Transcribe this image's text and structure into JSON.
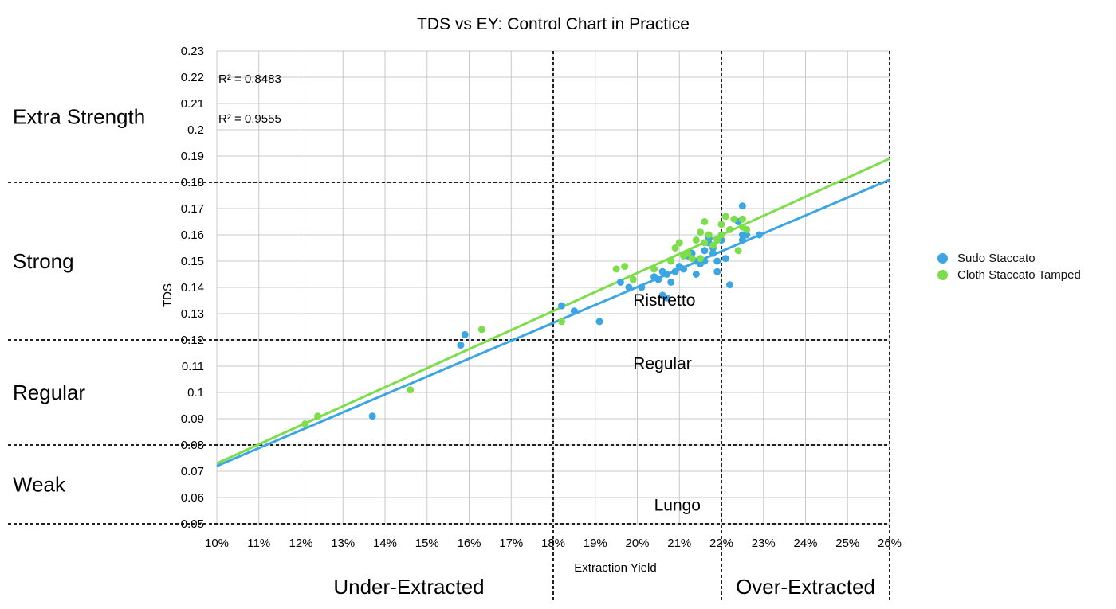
{
  "chart_data": {
    "type": "scatter",
    "title": "TDS vs EY: Control Chart in Practice",
    "xlabel": "Extraction Yield",
    "ylabel": "TDS",
    "xlim": [
      0.1,
      0.26
    ],
    "ylim": [
      0.05,
      0.23
    ],
    "x_ticks": [
      {
        "v": 0.1,
        "label": "10%"
      },
      {
        "v": 0.11,
        "label": "11%"
      },
      {
        "v": 0.12,
        "label": "12%"
      },
      {
        "v": 0.13,
        "label": "13%"
      },
      {
        "v": 0.14,
        "label": "14%"
      },
      {
        "v": 0.15,
        "label": "15%"
      },
      {
        "v": 0.16,
        "label": "16%"
      },
      {
        "v": 0.17,
        "label": "17%"
      },
      {
        "v": 0.18,
        "label": "18%"
      },
      {
        "v": 0.19,
        "label": "19%"
      },
      {
        "v": 0.2,
        "label": "20%"
      },
      {
        "v": 0.21,
        "label": "21%"
      },
      {
        "v": 0.22,
        "label": "22%"
      },
      {
        "v": 0.23,
        "label": "23%"
      },
      {
        "v": 0.24,
        "label": "24%"
      },
      {
        "v": 0.25,
        "label": "25%"
      },
      {
        "v": 0.26,
        "label": "26%"
      }
    ],
    "y_ticks": [
      {
        "v": 0.05,
        "label": "0.05"
      },
      {
        "v": 0.06,
        "label": "0.06"
      },
      {
        "v": 0.07,
        "label": "0.07"
      },
      {
        "v": 0.08,
        "label": "0.08"
      },
      {
        "v": 0.09,
        "label": "0.09"
      },
      {
        "v": 0.1,
        "label": "0.1"
      },
      {
        "v": 0.11,
        "label": "0.11"
      },
      {
        "v": 0.12,
        "label": "0.12"
      },
      {
        "v": 0.13,
        "label": "0.13"
      },
      {
        "v": 0.14,
        "label": "0.14"
      },
      {
        "v": 0.15,
        "label": "0.15"
      },
      {
        "v": 0.16,
        "label": "0.16"
      },
      {
        "v": 0.17,
        "label": "0.17"
      },
      {
        "v": 0.18,
        "label": "0.18"
      },
      {
        "v": 0.19,
        "label": "0.19"
      },
      {
        "v": 0.2,
        "label": "0.2"
      },
      {
        "v": 0.21,
        "label": "0.21"
      },
      {
        "v": 0.22,
        "label": "0.22"
      },
      {
        "v": 0.23,
        "label": "0.23"
      }
    ],
    "grid": true,
    "legend_position": "right",
    "series": [
      {
        "name": "Sudo Staccato",
        "color": "#3ba6e2",
        "trendline": {
          "x": [
            0.1,
            0.26
          ],
          "y": [
            0.072,
            0.181
          ]
        },
        "points": [
          [
            0.137,
            0.091
          ],
          [
            0.158,
            0.118
          ],
          [
            0.159,
            0.122
          ],
          [
            0.182,
            0.133
          ],
          [
            0.185,
            0.131
          ],
          [
            0.191,
            0.127
          ],
          [
            0.196,
            0.142
          ],
          [
            0.198,
            0.14
          ],
          [
            0.201,
            0.14
          ],
          [
            0.204,
            0.144
          ],
          [
            0.205,
            0.143
          ],
          [
            0.206,
            0.146
          ],
          [
            0.206,
            0.137
          ],
          [
            0.207,
            0.136
          ],
          [
            0.207,
            0.145
          ],
          [
            0.208,
            0.142
          ],
          [
            0.209,
            0.146
          ],
          [
            0.21,
            0.148
          ],
          [
            0.211,
            0.147
          ],
          [
            0.212,
            0.152
          ],
          [
            0.213,
            0.153
          ],
          [
            0.214,
            0.15
          ],
          [
            0.214,
            0.145
          ],
          [
            0.215,
            0.149
          ],
          [
            0.216,
            0.15
          ],
          [
            0.216,
            0.154
          ],
          [
            0.217,
            0.157
          ],
          [
            0.217,
            0.159
          ],
          [
            0.218,
            0.153
          ],
          [
            0.218,
            0.155
          ],
          [
            0.219,
            0.15
          ],
          [
            0.219,
            0.146
          ],
          [
            0.22,
            0.158
          ],
          [
            0.221,
            0.151
          ],
          [
            0.222,
            0.141
          ],
          [
            0.224,
            0.165
          ],
          [
            0.225,
            0.158
          ],
          [
            0.225,
            0.16
          ],
          [
            0.225,
            0.171
          ],
          [
            0.226,
            0.16
          ],
          [
            0.229,
            0.16
          ]
        ]
      },
      {
        "name": "Cloth Staccato Tamped",
        "color": "#7ddd4a",
        "trendline": {
          "x": [
            0.1,
            0.26
          ],
          "y": [
            0.073,
            0.189
          ]
        },
        "points": [
          [
            0.121,
            0.088
          ],
          [
            0.124,
            0.091
          ],
          [
            0.146,
            0.101
          ],
          [
            0.163,
            0.124
          ],
          [
            0.182,
            0.127
          ],
          [
            0.195,
            0.147
          ],
          [
            0.197,
            0.148
          ],
          [
            0.199,
            0.143
          ],
          [
            0.204,
            0.147
          ],
          [
            0.208,
            0.15
          ],
          [
            0.209,
            0.155
          ],
          [
            0.21,
            0.157
          ],
          [
            0.211,
            0.152
          ],
          [
            0.212,
            0.153
          ],
          [
            0.213,
            0.151
          ],
          [
            0.214,
            0.158
          ],
          [
            0.215,
            0.161
          ],
          [
            0.215,
            0.151
          ],
          [
            0.216,
            0.165
          ],
          [
            0.216,
            0.157
          ],
          [
            0.217,
            0.16
          ],
          [
            0.218,
            0.156
          ],
          [
            0.219,
            0.158
          ],
          [
            0.22,
            0.164
          ],
          [
            0.22,
            0.16
          ],
          [
            0.221,
            0.167
          ],
          [
            0.222,
            0.162
          ],
          [
            0.223,
            0.166
          ],
          [
            0.224,
            0.154
          ],
          [
            0.225,
            0.166
          ],
          [
            0.225,
            0.163
          ],
          [
            0.226,
            0.162
          ]
        ]
      }
    ],
    "annotations": {
      "r2_1": "R² = 0.8483",
      "r2_2": "R² = 0.9555",
      "zones_y": [
        {
          "label": "Extra Strength",
          "y_center": 0.205
        },
        {
          "label": "Strong",
          "y_center": 0.15
        },
        {
          "label": "Regular",
          "y_center": 0.1
        },
        {
          "label": "Weak",
          "y_center": 0.065
        }
      ],
      "zones_x": [
        {
          "label": "Under-Extracted"
        },
        {
          "label": "Over-Extracted"
        }
      ],
      "inner_labels": [
        {
          "label": "Ristretto",
          "x": 0.199,
          "y": 0.133
        },
        {
          "label": "Regular",
          "x": 0.199,
          "y": 0.109
        },
        {
          "label": "Lungo",
          "x": 0.204,
          "y": 0.055
        }
      ],
      "hlines": [
        0.18,
        0.12,
        0.08,
        0.05
      ],
      "vlines": [
        0.18,
        0.22,
        0.26
      ]
    }
  }
}
